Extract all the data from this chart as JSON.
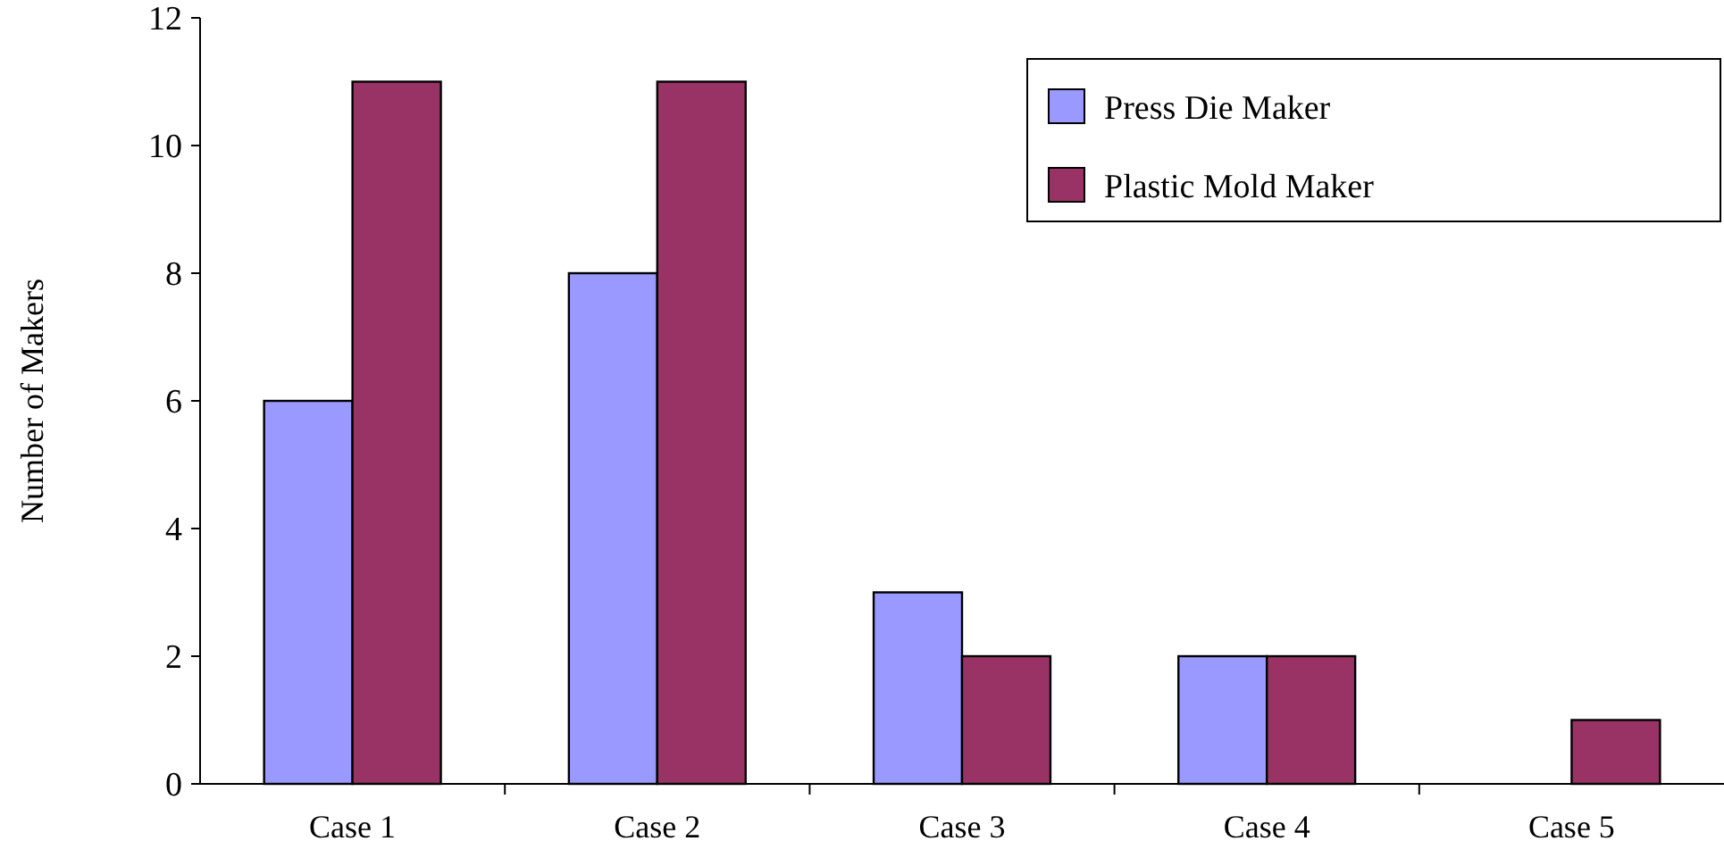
{
  "chart_data": {
    "type": "bar",
    "ylabel": "Number of Makers",
    "categories": [
      "Case 1",
      "Case 2",
      "Case 3",
      "Case 4",
      "Case 5"
    ],
    "series": [
      {
        "name": "Press Die Maker",
        "color": "#9999ff",
        "values": [
          6,
          8,
          3,
          2,
          0
        ]
      },
      {
        "name": "Plastic Mold Maker",
        "color": "#993366",
        "values": [
          11,
          11,
          2,
          2,
          1
        ]
      }
    ],
    "ylim": [
      0,
      12
    ],
    "yticks": [
      0,
      2,
      4,
      6,
      8,
      10,
      12
    ],
    "grid": false,
    "legend": "top right"
  }
}
